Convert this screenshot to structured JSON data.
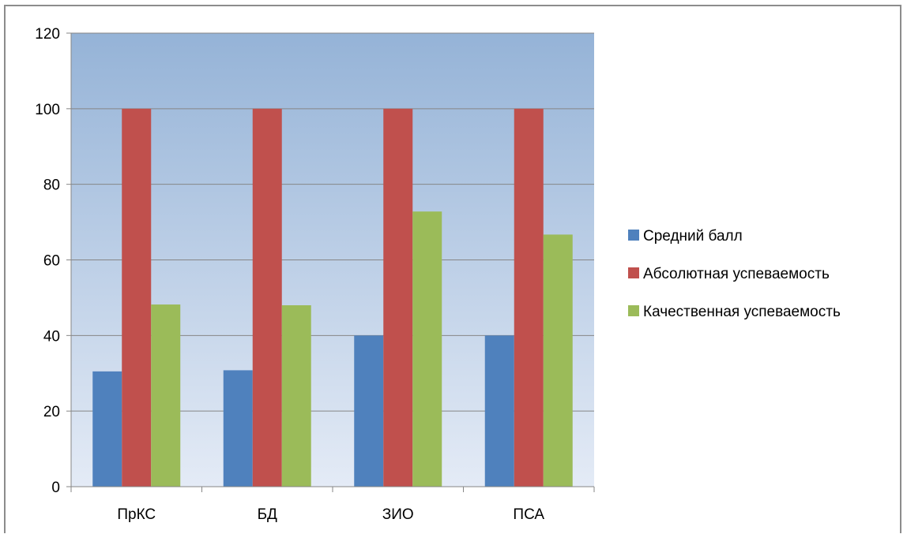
{
  "chart_data": {
    "type": "bar",
    "categories": [
      "ПрКС",
      "БД",
      "ЗИО",
      "ПСА"
    ],
    "series": [
      {
        "name": "Средний балл",
        "values": [
          30.5,
          30.8,
          40,
          40
        ],
        "color": "#4f81bd"
      },
      {
        "name": "Абсолютная успеваемость",
        "values": [
          100,
          100,
          100,
          100
        ],
        "color": "#c0504d"
      },
      {
        "name": "Качественная успеваемость",
        "values": [
          48.2,
          48,
          72.8,
          66.7
        ],
        "color": "#9bbb59"
      }
    ],
    "ylim": [
      0,
      120
    ],
    "yticks": [
      0,
      20,
      40,
      60,
      80,
      100,
      120
    ],
    "grid": true,
    "legend": "right",
    "plot_background": {
      "top": "#95b3d7",
      "bottom": "#e4ebf6"
    },
    "title": "",
    "xlabel": "",
    "ylabel": ""
  }
}
